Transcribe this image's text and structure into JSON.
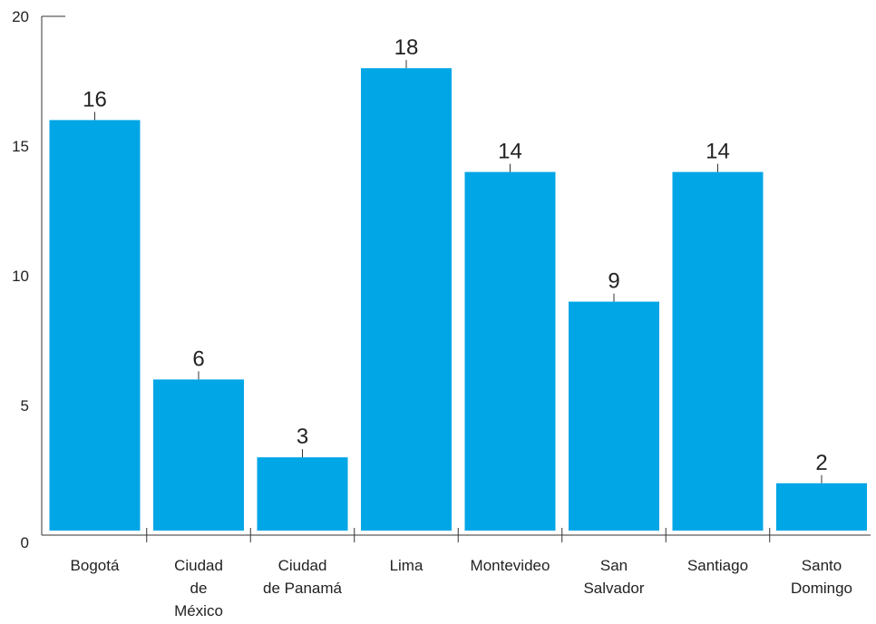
{
  "chart_data": {
    "type": "bar",
    "categories": [
      "Bogotá",
      "Ciudad de México",
      "Ciudad de Panamá",
      "Lima",
      "Montevideo",
      "San Salvador",
      "Santiago",
      "Santo Domingo"
    ],
    "category_lines": [
      [
        "Bogotá"
      ],
      [
        "Ciudad",
        "de",
        "México"
      ],
      [
        "Ciudad",
        "de Panamá"
      ],
      [
        "Lima"
      ],
      [
        "Montevideo"
      ],
      [
        "San",
        "Salvador"
      ],
      [
        "Santiago"
      ],
      [
        "Santo",
        "Domingo"
      ]
    ],
    "values": [
      16,
      6,
      3,
      18,
      14,
      9,
      14,
      2
    ],
    "value_labels": [
      "16",
      "6",
      "3",
      "18",
      "14",
      "9",
      "14",
      "2"
    ],
    "ylim": [
      0,
      20
    ],
    "yticks": [
      0,
      5,
      10,
      15,
      20
    ],
    "ytick_labels": [
      "0",
      "5",
      "10",
      "15",
      "20"
    ],
    "grid": false,
    "bar_color": "#00a6e6"
  }
}
